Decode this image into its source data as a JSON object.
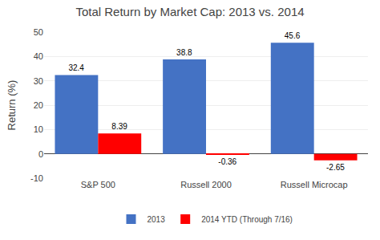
{
  "chart_data": {
    "type": "bar",
    "title": "Total Return by Market Cap: 2013 vs. 2014",
    "categories": [
      "S&P 500",
      "Russell 2000",
      "Russell Microcap"
    ],
    "series": [
      {
        "name": "2013",
        "color": "#4472C4",
        "values": [
          32.4,
          38.8,
          45.6
        ]
      },
      {
        "name": "2014 YTD (Through 7/16)",
        "color": "#FF0000",
        "values": [
          8.39,
          -0.36,
          -2.65
        ]
      }
    ],
    "ylabel": "Return (%)",
    "ylim": [
      -10,
      50
    ],
    "yticks": [
      -10,
      0,
      10,
      20,
      30,
      40,
      50
    ],
    "grid": true,
    "legend": "bottom",
    "data_labels": true
  }
}
